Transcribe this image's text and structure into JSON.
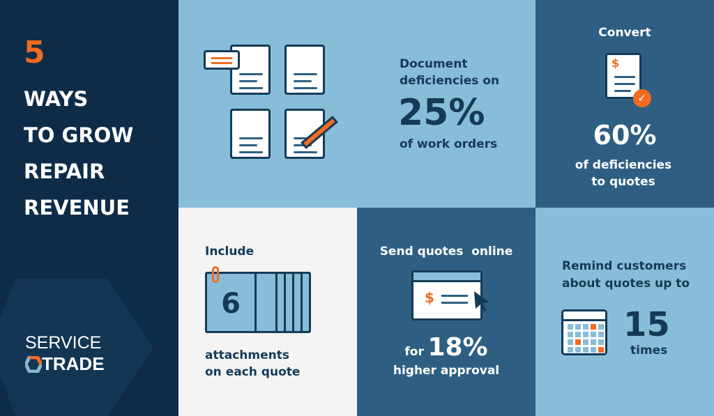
{
  "title": {
    "number": "5",
    "lines": [
      "WAYS",
      "TO GROW",
      "REPAIR",
      "REVENUE"
    ]
  },
  "logo": {
    "line1": "SERVICE",
    "line2": "TRADE"
  },
  "colors": {
    "accent": "#f26b21",
    "dark": "#0e2c48",
    "light_blue": "#88bdd9",
    "mid_blue": "#2e5f82",
    "text_dark": "#143a58"
  },
  "document": {
    "line1": "Document",
    "line2": "deficiencies on",
    "value": "25%",
    "suffix": "of work orders"
  },
  "convert": {
    "heading": "Convert",
    "value": "60%",
    "line1": "of deficiencies",
    "line2": "to quotes",
    "icon_symbol": "$"
  },
  "include": {
    "heading": "Include",
    "value": "6",
    "line1": "attachments",
    "line2": "on each quote"
  },
  "online": {
    "heading": "Send quotes  online",
    "prefix": "for",
    "value": "18%",
    "suffix": "higher approval",
    "icon_symbol": "$"
  },
  "remind": {
    "line1": "Remind customers",
    "line2": "about quotes up to",
    "value": "15",
    "suffix": "times"
  }
}
